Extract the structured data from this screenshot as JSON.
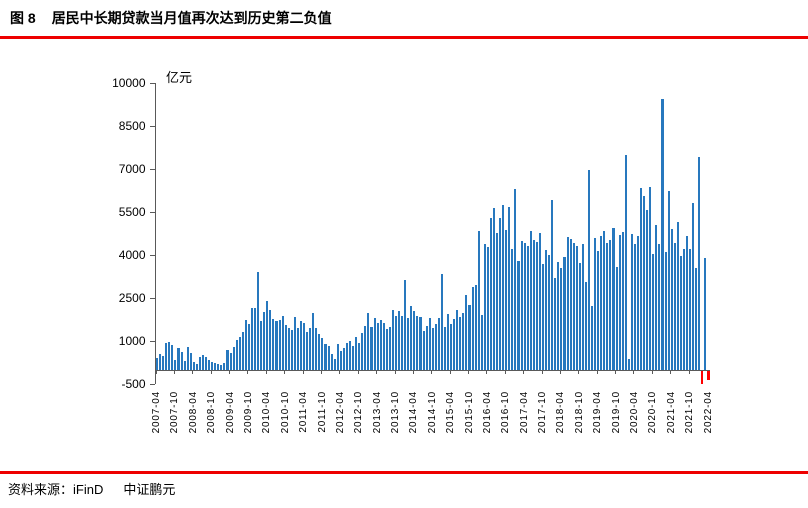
{
  "figure": {
    "label": "图 8",
    "title": "居民中长期贷款当月值再次达到历史第二负值"
  },
  "footer": {
    "source_label": "资料来源：",
    "sources": [
      "iFinD",
      "中证鹏元"
    ]
  },
  "chart_data": {
    "type": "bar",
    "title": "居民中长期贷款当月值再次达到历史第二负值",
    "unit_label": "亿元",
    "xlabel": "",
    "ylabel": "亿元",
    "ylim": [
      -500,
      10000
    ],
    "ytick_interval": 1500,
    "yticks": [
      -500,
      1000,
      2500,
      4000,
      5500,
      7000,
      8500,
      10000
    ],
    "grid": "off",
    "legend": "none",
    "xtick_every": 6,
    "bar_color_positive": "#2878BE",
    "bar_color_negative": "#FF0000",
    "axis_color": "#595959",
    "x": [
      "2007-04",
      "2007-05",
      "2007-06",
      "2007-07",
      "2007-08",
      "2007-09",
      "2007-10",
      "2007-11",
      "2007-12",
      "2008-01",
      "2008-02",
      "2008-03",
      "2008-04",
      "2008-05",
      "2008-06",
      "2008-07",
      "2008-08",
      "2008-09",
      "2008-10",
      "2008-11",
      "2008-12",
      "2009-01",
      "2009-02",
      "2009-03",
      "2009-04",
      "2009-05",
      "2009-06",
      "2009-07",
      "2009-08",
      "2009-09",
      "2009-10",
      "2009-11",
      "2009-12",
      "2010-01",
      "2010-02",
      "2010-03",
      "2010-04",
      "2010-05",
      "2010-06",
      "2010-07",
      "2010-08",
      "2010-09",
      "2010-10",
      "2010-11",
      "2010-12",
      "2011-01",
      "2011-02",
      "2011-03",
      "2011-04",
      "2011-05",
      "2011-06",
      "2011-07",
      "2011-08",
      "2011-09",
      "2011-10",
      "2011-11",
      "2011-12",
      "2012-01",
      "2012-02",
      "2012-03",
      "2012-04",
      "2012-05",
      "2012-06",
      "2012-07",
      "2012-08",
      "2012-09",
      "2012-10",
      "2012-11",
      "2012-12",
      "2013-01",
      "2013-02",
      "2013-03",
      "2013-04",
      "2013-05",
      "2013-06",
      "2013-07",
      "2013-08",
      "2013-09",
      "2013-10",
      "2013-11",
      "2013-12",
      "2014-01",
      "2014-02",
      "2014-03",
      "2014-04",
      "2014-05",
      "2014-06",
      "2014-07",
      "2014-08",
      "2014-09",
      "2014-10",
      "2014-11",
      "2014-12",
      "2015-01",
      "2015-02",
      "2015-03",
      "2015-04",
      "2015-05",
      "2015-06",
      "2015-07",
      "2015-08",
      "2015-09",
      "2015-10",
      "2015-11",
      "2015-12",
      "2016-01",
      "2016-02",
      "2016-03",
      "2016-04",
      "2016-05",
      "2016-06",
      "2016-07",
      "2016-08",
      "2016-09",
      "2016-10",
      "2016-11",
      "2016-12",
      "2017-01",
      "2017-02",
      "2017-03",
      "2017-04",
      "2017-05",
      "2017-06",
      "2017-07",
      "2017-08",
      "2017-09",
      "2017-10",
      "2017-11",
      "2017-12",
      "2018-01",
      "2018-02",
      "2018-03",
      "2018-04",
      "2018-05",
      "2018-06",
      "2018-07",
      "2018-08",
      "2018-09",
      "2018-10",
      "2018-11",
      "2018-12",
      "2019-01",
      "2019-02",
      "2019-03",
      "2019-04",
      "2019-05",
      "2019-06",
      "2019-07",
      "2019-08",
      "2019-09",
      "2019-10",
      "2019-11",
      "2019-12",
      "2020-01",
      "2020-02",
      "2020-03",
      "2020-04",
      "2020-05",
      "2020-06",
      "2020-07",
      "2020-08",
      "2020-09",
      "2020-10",
      "2020-11",
      "2020-12",
      "2021-01",
      "2021-02",
      "2021-03",
      "2021-04",
      "2021-05",
      "2021-06",
      "2021-07",
      "2021-08",
      "2021-09",
      "2021-10",
      "2021-11",
      "2021-12",
      "2022-01",
      "2022-02",
      "2022-03",
      "2022-04"
    ],
    "values": [
      420,
      560,
      490,
      930,
      990,
      870,
      350,
      760,
      640,
      330,
      815,
      580,
      290,
      210,
      465,
      525,
      440,
      350,
      290,
      255,
      210,
      180,
      250,
      700,
      610,
      800,
      1050,
      1150,
      1320,
      1750,
      1600,
      2150,
      2160,
      3430,
      1700,
      2030,
      2420,
      2100,
      1790,
      1700,
      1750,
      1900,
      1560,
      1480,
      1400,
      1850,
      1450,
      1700,
      1640,
      1320,
      1450,
      1980,
      1480,
      1250,
      1100,
      900,
      830,
      550,
      380,
      900,
      680,
      760,
      930,
      1020,
      830,
      1150,
      950,
      1300,
      1550,
      1990,
      1500,
      1800,
      1650,
      1750,
      1640,
      1420,
      1510,
      2100,
      1900,
      2050,
      1900,
      3150,
      1800,
      2220,
      2050,
      1900,
      1850,
      1360,
      1550,
      1800,
      1450,
      1600,
      1820,
      3350,
      1500,
      1950,
      1600,
      1780,
      2100,
      1850,
      2000,
      2620,
      2250,
      2900,
      2970,
      4830,
      1920,
      4400,
      4280,
      5281,
      5639,
      4773,
      5286,
      5741,
      4891,
      5692,
      4217,
      6293,
      3804,
      4503,
      4441,
      4326,
      4833,
      4544,
      4470,
      4786,
      3710,
      4178,
      4004,
      5910,
      3220,
      3770,
      3543,
      3923,
      4634,
      4576,
      4415,
      4309,
      3730,
      4391,
      3079,
      6969,
      2226,
      4605,
      4165,
      4677,
      4858,
      4417,
      4540,
      4943,
      3587,
      4689,
      4824,
      7491,
      371,
      4738,
      4389,
      4662,
      6349,
      6067,
      5571,
      6362,
      4059,
      5049,
      4392,
      9448,
      4113,
      6239,
      4918,
      4426,
      5156,
      3974,
      4217,
      4667,
      4221,
      5821,
      3558,
      7424,
      -459,
      3900,
      -313
    ]
  }
}
